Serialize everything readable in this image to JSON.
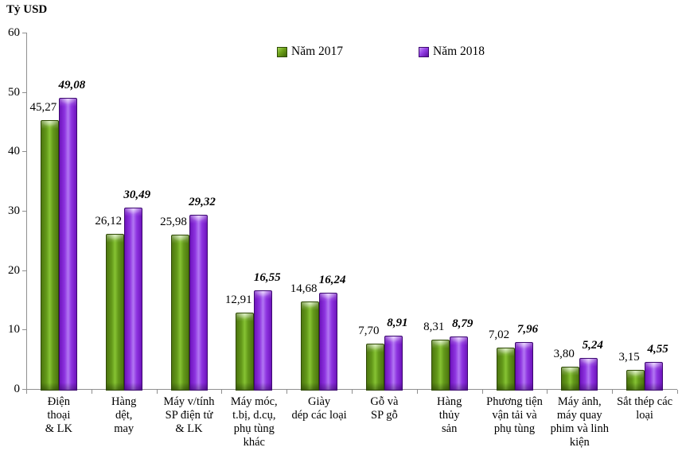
{
  "title": "Tỷ USD",
  "chart_data": {
    "type": "bar",
    "title": "Tỷ USD",
    "ylabel": "Tỷ USD",
    "xlabel": "",
    "ylim": [
      0,
      60
    ],
    "yticks": [
      0,
      10,
      20,
      30,
      40,
      50,
      60
    ],
    "grid": false,
    "legend_position": "top-center",
    "decimal_separator": ",",
    "categories": [
      "Điện thoại & LK",
      "Hàng dệt, may",
      "Máy v/tính SP điện tử & LK",
      "Máy móc, t.bị, d.cụ, phụ tùng khác",
      "Giày dép các loại",
      "Gỗ và SP gỗ",
      "Hàng thủy sản",
      "Phương tiện vận tải và phụ tùng",
      "Máy ảnh, máy quay phim và linh kiện",
      "Sắt thép các loại"
    ],
    "category_display_lines": [
      "Điện\nthoại\n& LK",
      "Hàng\ndệt,\nmay",
      "Máy v/tính\nSP điện tử\n& LK",
      "Máy móc,\nt.bị, d.cụ,\nphụ tùng\nkhác",
      "Giày\ndép các loại",
      "Gỗ và\nSP gỗ",
      "Hàng\nthủy\nsản",
      "Phương tiện\nvận tải và\nphụ tùng",
      "Máy ảnh,\nmáy quay\nphim và linh\nkiện",
      "Sắt thép các\nloại"
    ],
    "series": [
      {
        "name": "Năm 2017",
        "values": [
          45.27,
          26.12,
          25.98,
          12.91,
          14.68,
          7.7,
          8.31,
          7.02,
          3.8,
          3.15
        ],
        "color": "#6ca518",
        "label_style": "regular"
      },
      {
        "name": "Năm 2018",
        "values": [
          49.08,
          30.49,
          29.32,
          16.55,
          16.24,
          8.91,
          8.79,
          7.96,
          5.24,
          4.55
        ],
        "color": "#9440e6",
        "label_style": "bold-italic"
      }
    ]
  },
  "colors": {
    "series_2017_green": "#6ca518",
    "series_2018_purple": "#9440e6",
    "axis_gray": "#8f8f8f",
    "background": "#ffffff",
    "text": "#000000"
  }
}
